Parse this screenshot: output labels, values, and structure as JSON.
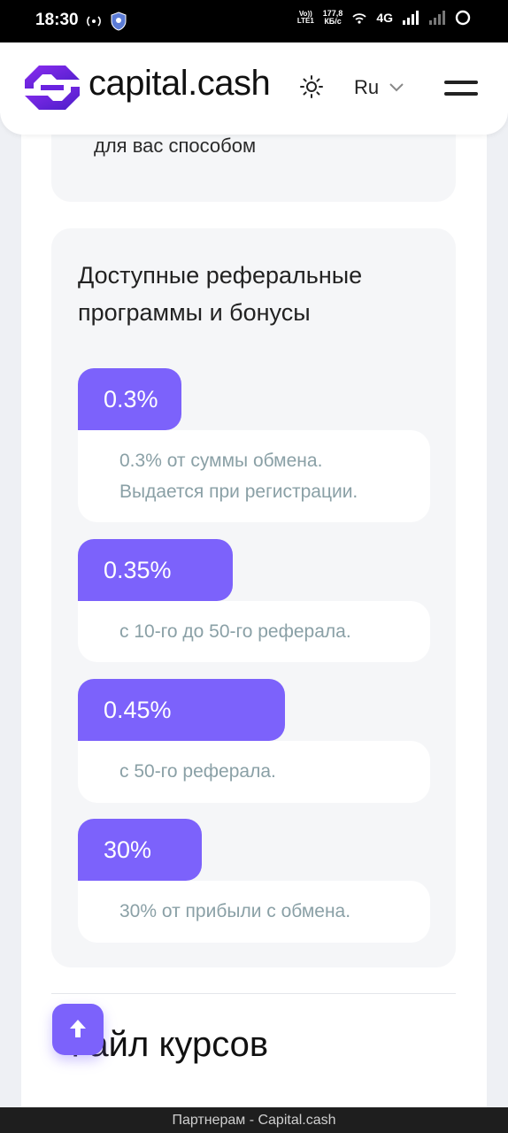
{
  "status_bar": {
    "time": "18:30",
    "volte_top": "Vo))",
    "volte_bottom": "LTE1",
    "speed_value": "177,8",
    "speed_unit": "КБ/с",
    "network": "4G"
  },
  "header": {
    "brand": "capital.cash",
    "language": "Ru"
  },
  "prev_card": {
    "text_tail": "для вас способом"
  },
  "referral_card": {
    "title": "Доступные реферальные программы и бонусы",
    "tiers": [
      {
        "percent": "0.3%",
        "description": "0.3% от суммы обмена. Выдается при регистрации."
      },
      {
        "percent": "0.35%",
        "description": "с 10-го до 50-го реферала."
      },
      {
        "percent": "0.45%",
        "description": "с 50-го реферала."
      },
      {
        "percent": "30%",
        "description": "30% от прибыли с обмена."
      }
    ]
  },
  "next_section": {
    "heading": "Файл курсов"
  },
  "browser_bar": {
    "title": "Партнерам - Capital.cash"
  },
  "colors": {
    "accent": "#7c62fb",
    "card_bg": "#f5f6f8",
    "description_text": "#8aa0a6"
  }
}
